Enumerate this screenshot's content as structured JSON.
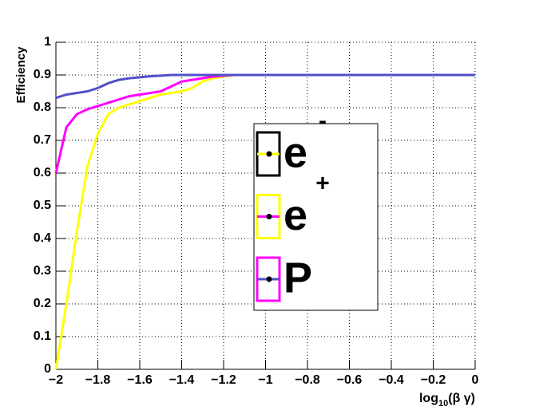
{
  "chart_data": {
    "type": "line",
    "y_label": "Efficiency",
    "x_label": "log",
    "x_label_sub": "10",
    "x_label_rest": "(β γ)",
    "x": [
      -2,
      -1.95,
      -1.9,
      -1.85,
      -1.8,
      -1.75,
      -1.7,
      -1.65,
      -1.6,
      -1.55,
      -1.5,
      -1.45,
      -1.4,
      -1.35,
      -1.3,
      -1.25,
      -1.2,
      -1.15,
      -1.1,
      -1.05,
      -1,
      -0.95,
      -0.9,
      -0.85,
      -0.8,
      -0.75,
      -0.7,
      -0.65,
      -0.6,
      -0.55,
      -0.5,
      -0.45,
      -0.4,
      -0.35,
      -0.3,
      -0.25,
      -0.2,
      -0.15,
      -0.1,
      -0.05,
      0
    ],
    "series": [
      {
        "name": "e",
        "sup": "-",
        "color": "#ffff00",
        "values": [
          0,
          0.2,
          0.42,
          0.62,
          0.72,
          0.78,
          0.8,
          0.81,
          0.82,
          0.83,
          0.84,
          0.845,
          0.85,
          0.86,
          0.88,
          0.89,
          0.895,
          0.9,
          0.9,
          0.9,
          0.9,
          0.9,
          0.9,
          0.9,
          0.9,
          0.9,
          0.9,
          0.9,
          0.9,
          0.9,
          0.9,
          0.9,
          0.9,
          0.9,
          0.9,
          0.9,
          0.9,
          0.9,
          0.9,
          0.9,
          0.9
        ]
      },
      {
        "name": "e",
        "sup": "+",
        "color": "#ff00ff",
        "values": [
          0.6,
          0.74,
          0.78,
          0.795,
          0.805,
          0.815,
          0.825,
          0.835,
          0.84,
          0.845,
          0.85,
          0.865,
          0.88,
          0.885,
          0.89,
          0.895,
          0.898,
          0.9,
          0.9,
          0.9,
          0.9,
          0.9,
          0.9,
          0.9,
          0.9,
          0.9,
          0.9,
          0.9,
          0.9,
          0.9,
          0.9,
          0.9,
          0.9,
          0.9,
          0.9,
          0.9,
          0.9,
          0.9,
          0.9,
          0.9,
          0.9
        ]
      },
      {
        "name": "P",
        "color": "#5050c8",
        "values": [
          0.83,
          0.84,
          0.845,
          0.85,
          0.86,
          0.875,
          0.885,
          0.89,
          0.893,
          0.896,
          0.898,
          0.9,
          0.9,
          0.9,
          0.9,
          0.9,
          0.9,
          0.9,
          0.9,
          0.9,
          0.9,
          0.9,
          0.9,
          0.9,
          0.9,
          0.9,
          0.9,
          0.9,
          0.9,
          0.9,
          0.9,
          0.9,
          0.9,
          0.9,
          0.9,
          0.9,
          0.9,
          0.9,
          0.9,
          0.9,
          0.9
        ]
      }
    ],
    "xlim": [
      -2,
      0
    ],
    "xticks": [
      {
        "value": -2,
        "label": "−2"
      },
      {
        "value": -1.8,
        "label": "−1.8"
      },
      {
        "value": -1.6,
        "label": "−1.6"
      },
      {
        "value": -1.4,
        "label": "−1.4"
      },
      {
        "value": -1.2,
        "label": "−1.2"
      },
      {
        "value": -1,
        "label": "−1"
      },
      {
        "value": -0.8,
        "label": "−0.8"
      },
      {
        "value": -0.6,
        "label": "−0.6"
      },
      {
        "value": -0.4,
        "label": "−0.4"
      },
      {
        "value": -0.2,
        "label": "−0.2"
      },
      0
    ],
    "ylim": [
      0,
      1
    ],
    "yticks": [
      0,
      0.1,
      0.2,
      0.3,
      0.4,
      0.5,
      0.6,
      0.7,
      0.8,
      0.9,
      1
    ],
    "grid": true
  }
}
